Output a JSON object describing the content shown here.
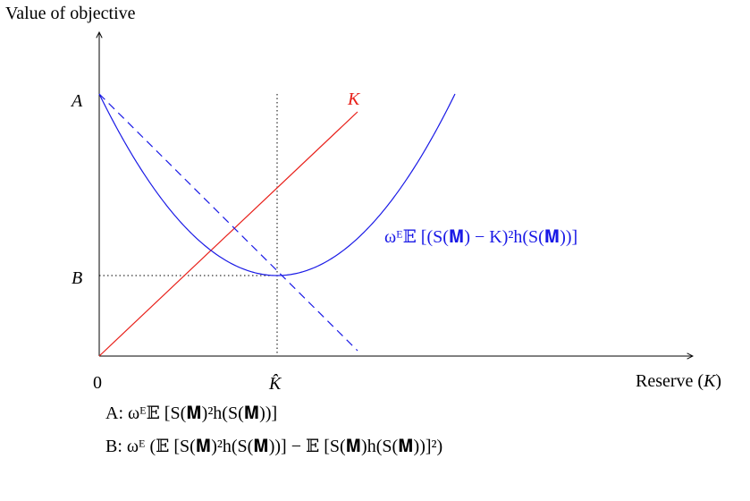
{
  "axes": {
    "y_label": "Value of objective",
    "x_label": "Reserve (K)",
    "origin_label": "0",
    "y_tick_a": "A",
    "y_tick_b": "B",
    "x_tick_khat": "K̂"
  },
  "curves": {
    "line_label": "K",
    "curve_label": "ωᴱ𝔼 [(S(𝐌) − K)²h(S(𝐌))]",
    "line_color": "#e8201a",
    "curve_color": "#1a1ae6"
  },
  "legend": {
    "a_def": "A: ωᴱ𝔼 [S(𝐌)²h(S(𝐌))]",
    "b_def": "B: ωᴱ (𝔼 [S(𝐌)²h(S(𝐌))] − 𝔼 [S(𝐌)h(S(𝐌))]²)"
  }
}
